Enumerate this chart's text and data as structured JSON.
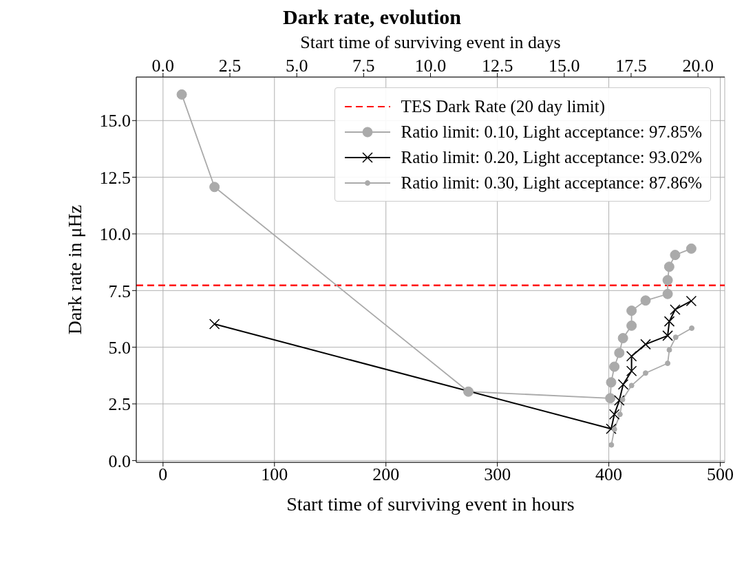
{
  "chart_data": {
    "type": "line",
    "title": "Dark rate, evolution",
    "xlabel": "Start time of surviving event in hours",
    "x2label": "Start time of surviving event in days",
    "ylabel": "Dark rate in μHz",
    "xlim": [
      -24,
      504
    ],
    "xticks": [
      0,
      100,
      200,
      300,
      400,
      500
    ],
    "x2lim": [
      -1,
      21
    ],
    "x2ticks": [
      {
        "value": 0,
        "label": "0.0"
      },
      {
        "value": 2.5,
        "label": "2.5"
      },
      {
        "value": 5,
        "label": "5.0"
      },
      {
        "value": 7.5,
        "label": "7.5"
      },
      {
        "value": 10,
        "label": "10.0"
      },
      {
        "value": 12.5,
        "label": "12.5"
      },
      {
        "value": 15,
        "label": "15.0"
      },
      {
        "value": 17.5,
        "label": "17.5"
      },
      {
        "value": 20,
        "label": "20.0"
      }
    ],
    "ylim": [
      -0.08,
      16.92
    ],
    "yticks": [
      {
        "value": 0,
        "label": "0.0"
      },
      {
        "value": 2.5,
        "label": "2.5"
      },
      {
        "value": 5,
        "label": "5.0"
      },
      {
        "value": 7.5,
        "label": "7.5"
      },
      {
        "value": 10,
        "label": "10.0"
      },
      {
        "value": 12.5,
        "label": "12.5"
      },
      {
        "value": 15,
        "label": "15.0"
      }
    ],
    "grid": true,
    "legend": "top right",
    "ref_lines": [
      {
        "axis": "y",
        "value": 7.73,
        "label": "TES Dark Rate (20 day limit)",
        "color": "#ff0000",
        "line_style": "dashed"
      }
    ],
    "series": [
      {
        "name": "Ratio limit: 0.10, Light acceptance: 97.85%",
        "color": "#aaaaaa",
        "marker": "circle",
        "x": [
          16.8,
          46.2,
          274,
          401.3,
          402.1,
          405,
          409.4,
          412.7,
          420.4,
          420.4,
          433,
          452.8,
          452.8,
          454.2,
          459.5,
          474
        ],
        "values": [
          16.15,
          12.07,
          3.04,
          2.75,
          3.45,
          4.14,
          4.75,
          5.4,
          5.95,
          6.61,
          7.06,
          7.35,
          7.96,
          8.55,
          9.07,
          9.35
        ]
      },
      {
        "name": "Ratio limit: 0.20, Light acceptance: 93.02%",
        "color": "#000000",
        "marker": "cross",
        "x": [
          46.2,
          402.1,
          405,
          409.4,
          412.9,
          420.4,
          420.4,
          433,
          452.8,
          454.3,
          459.5,
          474
        ],
        "values": [
          6.02,
          1.4,
          2.04,
          2.65,
          3.36,
          3.95,
          4.6,
          5.13,
          5.51,
          6.14,
          6.66,
          7.04
        ]
      },
      {
        "name": "Ratio limit: 0.30, Light acceptance: 87.86%",
        "color": "#aaaaaa",
        "marker": "circle",
        "x": [
          402.3,
          405,
          410,
          412.3,
          420.4,
          433,
          452.8,
          454.3,
          460,
          474.4
        ],
        "values": [
          0.69,
          1.38,
          2.04,
          2.69,
          3.31,
          3.86,
          4.29,
          4.88,
          5.44,
          5.84
        ]
      }
    ]
  }
}
